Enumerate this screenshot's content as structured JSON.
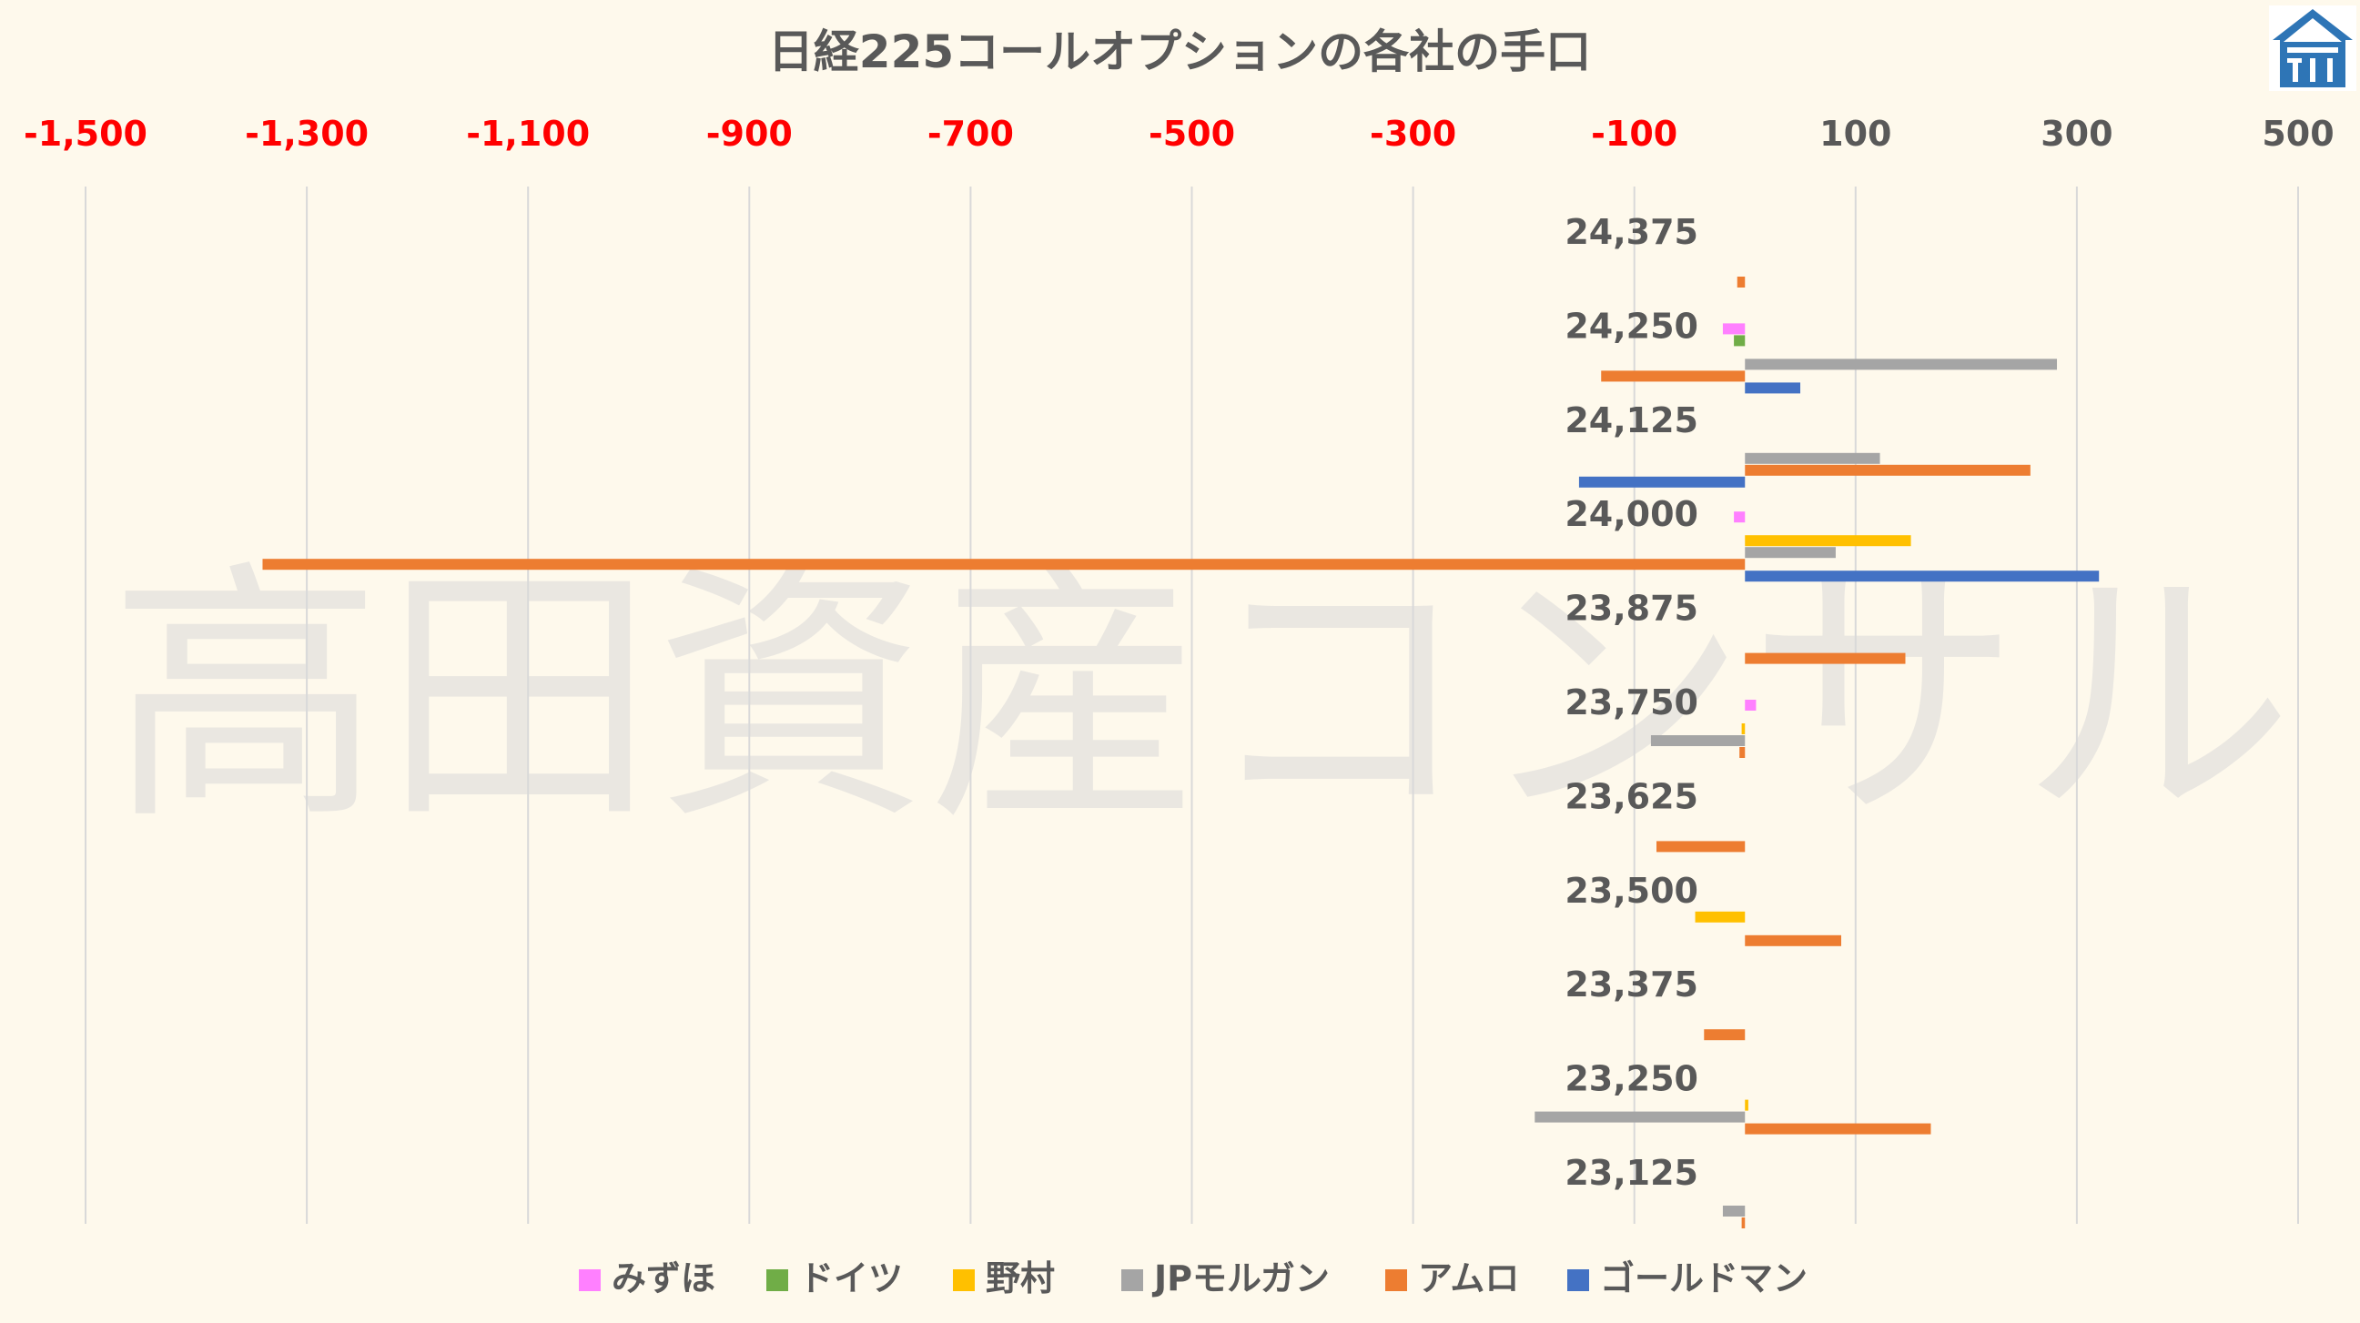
{
  "watermark": "高田資産コンサル",
  "logo": {
    "icon": "house-logo-icon",
    "color": "#2E75B6"
  },
  "colors": {
    "background": "#FEF9EC",
    "negative_tick": "#FF0000",
    "positive_tick": "#595959",
    "grid": "#D9D9D9"
  },
  "chart_data": {
    "type": "bar",
    "orientation": "horizontal",
    "title": "日経225コールオプションの各社の手口",
    "xlim": [
      -1500,
      500
    ],
    "xticks": [
      -1500,
      -1300,
      -1100,
      -900,
      -700,
      -500,
      -300,
      -100,
      100,
      300,
      500
    ],
    "xtick_labels": [
      "-1,500",
      "-1,300",
      "-1,100",
      "-900",
      "-700",
      "-500",
      "-300",
      "-100",
      "100",
      "300",
      "500"
    ],
    "axis_position": "top",
    "grid": true,
    "legend_position": "bottom",
    "categories": [
      "24,375",
      "24,250",
      "24,125",
      "24,000",
      "23,875",
      "23,750",
      "23,625",
      "23,500",
      "23,375",
      "23,250",
      "23,125"
    ],
    "series": [
      {
        "name": "みずほ",
        "color": "#FF80FF",
        "values": [
          0,
          -20,
          0,
          -10,
          0,
          10,
          0,
          0,
          0,
          0,
          0
        ]
      },
      {
        "name": "ドイツ",
        "color": "#70AD47",
        "values": [
          0,
          -10,
          0,
          0,
          0,
          0,
          0,
          0,
          0,
          0,
          0
        ]
      },
      {
        "name": "野村",
        "color": "#FFC000",
        "values": [
          0,
          0,
          0,
          150,
          0,
          -3,
          0,
          -45,
          0,
          3,
          0
        ]
      },
      {
        "name": "JPモルガン",
        "color": "#A5A5A5",
        "values": [
          0,
          282,
          122,
          82,
          0,
          -85,
          0,
          0,
          0,
          -190,
          -20
        ]
      },
      {
        "name": "アムロ",
        "color": "#ED7D31",
        "values": [
          -7,
          -130,
          258,
          -1340,
          145,
          -5,
          -80,
          87,
          -37,
          168,
          -3
        ]
      },
      {
        "name": "ゴールドマン",
        "color": "#4472C4",
        "values": [
          0,
          50,
          -150,
          320,
          0,
          0,
          0,
          0,
          0,
          0,
          0
        ]
      }
    ]
  }
}
